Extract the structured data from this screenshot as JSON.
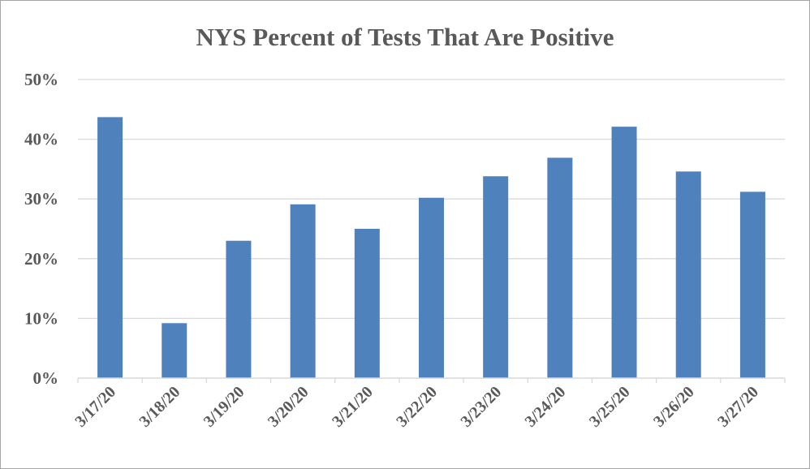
{
  "chart_data": {
    "type": "bar",
    "title": "NYS Percent of Tests That Are Positive",
    "xlabel": "",
    "ylabel": "",
    "categories": [
      "3/17/20",
      "3/18/20",
      "3/19/20",
      "3/20/20",
      "3/21/20",
      "3/22/20",
      "3/23/20",
      "3/24/20",
      "3/25/20",
      "3/26/20",
      "3/27/20"
    ],
    "values": [
      43.7,
      9.2,
      23.0,
      29.1,
      25.0,
      30.2,
      33.8,
      36.9,
      42.1,
      34.6,
      31.2
    ],
    "ylim": [
      0,
      50
    ],
    "yticks": [
      0,
      10,
      20,
      30,
      40,
      50
    ],
    "ytick_labels": [
      "0%",
      "10%",
      "20%",
      "30%",
      "40%",
      "50%"
    ],
    "grid": true,
    "legend": "none",
    "bar_color": "#4f81bd",
    "grid_color": "#d9d9d9",
    "text_color": "#595959"
  }
}
